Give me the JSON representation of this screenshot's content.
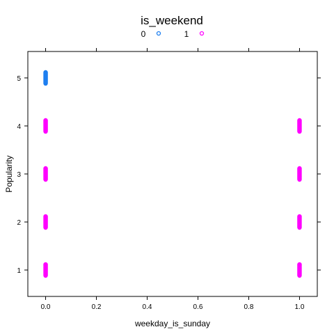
{
  "chart_data": {
    "type": "scatter",
    "title": "",
    "xlabel": "weekday_is_sunday",
    "ylabel": "Popularity",
    "xlim": [
      -0.07,
      1.07
    ],
    "ylim": [
      0.45,
      5.55
    ],
    "xticks": [
      "0.0",
      "0.2",
      "0.4",
      "0.6",
      "0.8",
      "1.0"
    ],
    "xtick_values": [
      0,
      0.2,
      0.4,
      0.6,
      0.8,
      1.0
    ],
    "yticks": [
      "1",
      "2",
      "3",
      "4",
      "5"
    ],
    "ytick_values": [
      1,
      2,
      3,
      4,
      5
    ],
    "grid": false,
    "legend": {
      "title": "is_weekend",
      "placement": "top",
      "entries": [
        {
          "label": "0",
          "color": "#1e7ff0"
        },
        {
          "label": "1",
          "color": "#ff00ff"
        }
      ]
    },
    "series": [
      {
        "name": "0",
        "color": "#1e7ff0",
        "points": [
          {
            "x": 0,
            "y": 5
          }
        ]
      },
      {
        "name": "1",
        "color": "#ff00ff",
        "points": [
          {
            "x": 0,
            "y": 1
          },
          {
            "x": 0,
            "y": 2
          },
          {
            "x": 0,
            "y": 3
          },
          {
            "x": 0,
            "y": 4
          },
          {
            "x": 1,
            "y": 1
          },
          {
            "x": 1,
            "y": 2
          },
          {
            "x": 1,
            "y": 3
          },
          {
            "x": 1,
            "y": 4
          }
        ]
      }
    ]
  }
}
